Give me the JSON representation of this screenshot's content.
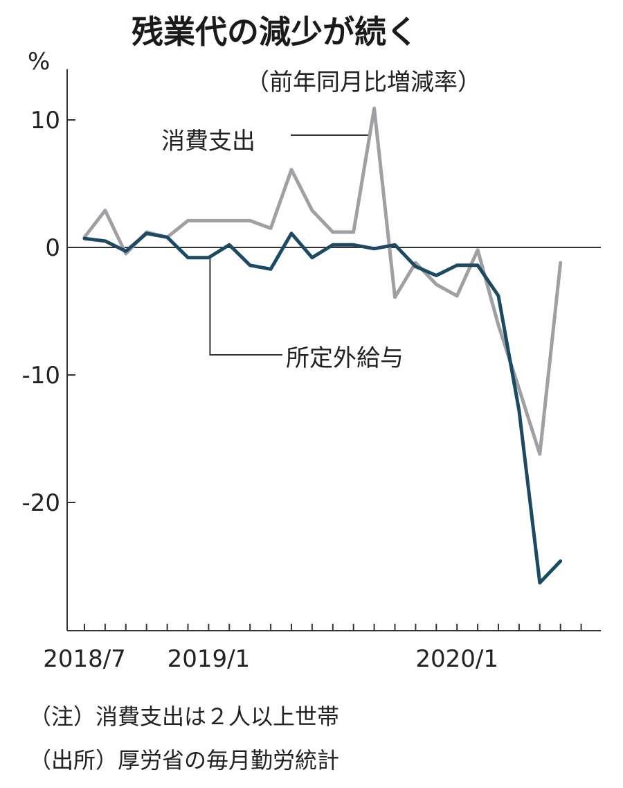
{
  "chart_data": {
    "type": "line",
    "title": "残業代の減少が続く",
    "subtitle": "（前年同月比増減率）",
    "y_unit": "%",
    "ylim": [
      -30,
      14
    ],
    "y_ticks": [
      10,
      0,
      -10,
      -20
    ],
    "y_tick_labels": [
      "10",
      "0",
      "-10",
      "-20"
    ],
    "x": [
      "2018/7",
      "2018/8",
      "2018/9",
      "2018/10",
      "2018/11",
      "2018/12",
      "2019/1",
      "2019/2",
      "2019/3",
      "2019/4",
      "2019/5",
      "2019/6",
      "2019/7",
      "2019/8",
      "2019/9",
      "2019/10",
      "2019/11",
      "2019/12",
      "2020/1",
      "2020/2",
      "2020/3",
      "2020/4",
      "2020/5",
      "2020/6",
      "2020/7"
    ],
    "x_tick_labels": [
      "2018/7",
      "2019/1",
      "2020/1"
    ],
    "series": [
      {
        "name": "消費支出",
        "color": "#a0a0a4",
        "values": [
          0.8,
          2.9,
          -0.5,
          1.2,
          0.8,
          2.1,
          2.1,
          2.1,
          2.1,
          1.5,
          6.1,
          2.9,
          1.2,
          1.2,
          10.9,
          -3.9,
          -1.2,
          -2.9,
          -3.8,
          -0.2,
          -6.1,
          -11.1,
          -16.2,
          -1.2,
          null
        ]
      },
      {
        "name": "所定外給与",
        "color": "#1d4a63",
        "values": [
          0.7,
          0.5,
          -0.3,
          1.1,
          0.8,
          -0.8,
          -0.8,
          0.2,
          -1.4,
          -1.7,
          1.1,
          -0.8,
          0.2,
          0.2,
          -0.1,
          0.2,
          -1.5,
          -2.2,
          -1.4,
          -1.4,
          -3.8,
          -12.8,
          -26.3,
          -24.6,
          null
        ]
      }
    ]
  },
  "notes": [
    "（注）消費支出は２人以上世帯",
    "（出所）厚労省の毎月勤労統計"
  ]
}
